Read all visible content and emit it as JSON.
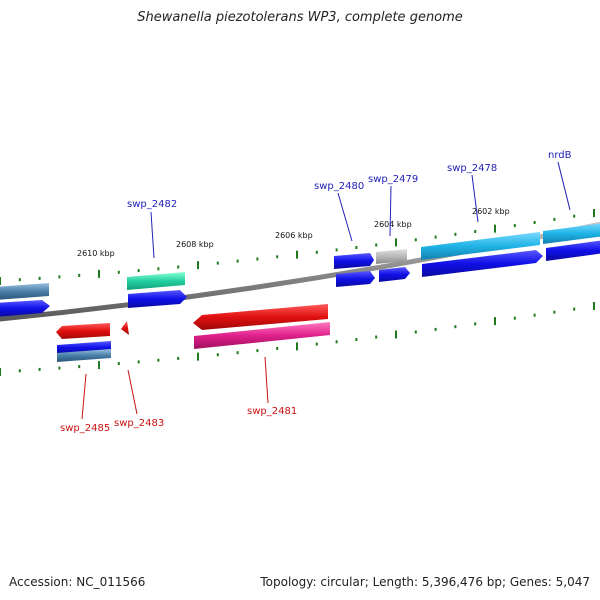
{
  "title": "Shewanella piezotolerans WP3, complete genome",
  "footer": {
    "accession": "Accession: NC_011566",
    "summary": "Topology: circular; Length: 5,396,476 bp; Genes: 5,047"
  },
  "ticks": [
    {
      "label": "2610 kbp"
    },
    {
      "label": "2608 kbp"
    },
    {
      "label": "2606 kbp"
    },
    {
      "label": "2604 kbp"
    },
    {
      "label": "2602 kbp"
    }
  ],
  "gene_labels": [
    {
      "id": "swp_2482",
      "label": "swp_2482"
    },
    {
      "id": "swp_2480",
      "label": "swp_2480"
    },
    {
      "id": "swp_2479",
      "label": "swp_2479"
    },
    {
      "id": "swp_2478",
      "label": "swp_2478"
    },
    {
      "id": "nrdB",
      "label": "nrdB"
    },
    {
      "id": "swp_2485",
      "label": "swp_2485"
    },
    {
      "id": "swp_2483",
      "label": "swp_2483"
    },
    {
      "id": "swp_2481",
      "label": "swp_2481"
    }
  ],
  "colors": {
    "backbone": "#8a8a8a",
    "cds_forward": "#1a1aee",
    "cds_reverse": "#e01010",
    "label_forward": "#2222bb",
    "label_reverse": "#cc1111",
    "tick": "#1f7a1f",
    "teal_feature": "#22d0a0",
    "cyan_feature": "#20b4e6",
    "magenta_feature": "#e0208c",
    "steel_feature": "#4a7fa8",
    "gray_feature": "#b8b8b8"
  }
}
